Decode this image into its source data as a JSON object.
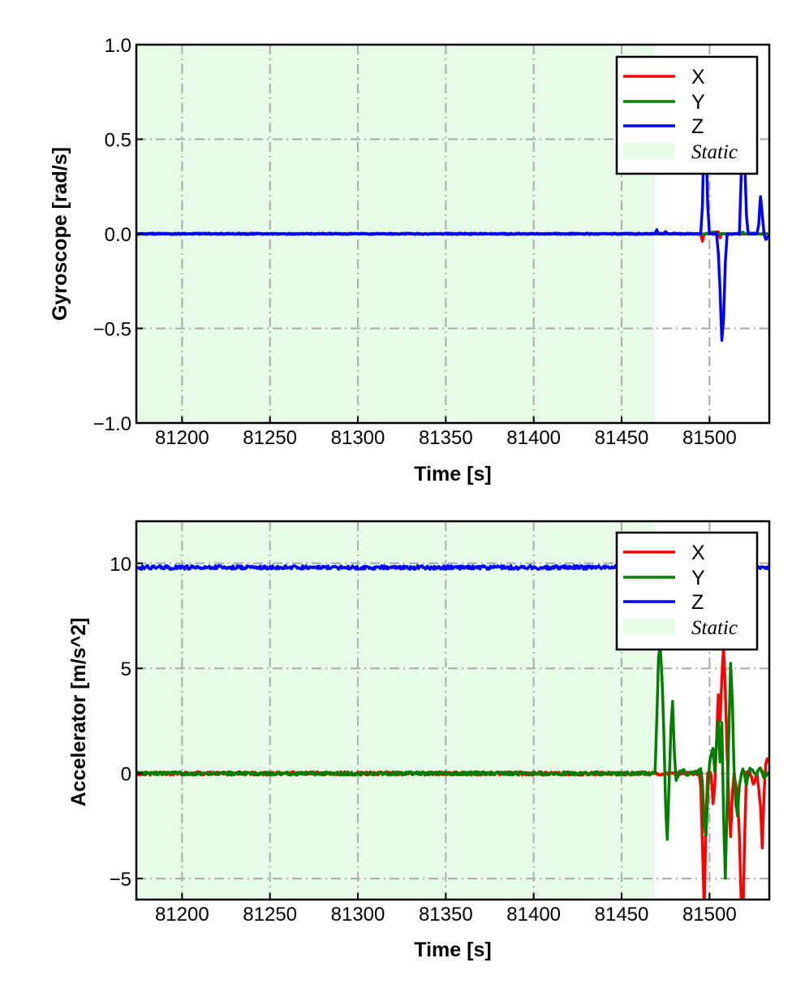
{
  "chart_data": [
    {
      "type": "line",
      "xlabel": "Time [s]",
      "ylabel": "Gyroscope [rad/s]",
      "xlim": [
        81174,
        81534
      ],
      "ylim": [
        -1.0,
        1.0
      ],
      "x_ticks": [
        81200,
        81250,
        81300,
        81350,
        81400,
        81450,
        81500
      ],
      "x_tick_labels": [
        "81200",
        "81250",
        "81300",
        "81350",
        "81400",
        "81450",
        "81500"
      ],
      "y_ticks": [
        -1.0,
        -0.5,
        0.0,
        0.5,
        1.0
      ],
      "y_tick_labels": [
        "−1.0",
        "−0.5",
        "0.0",
        "0.5",
        "1.0"
      ],
      "grid": true,
      "legend_position": "top-right",
      "static_region": {
        "label": "Static",
        "x_start": 81174,
        "x_end": 81469,
        "color": "#e8fbe8"
      },
      "series": [
        {
          "name": "X",
          "color": "#ff0000",
          "noise": 0.002,
          "points": [
            [
              81174,
              0
            ],
            [
              81495,
              0
            ],
            [
              81496,
              -0.04
            ],
            [
              81497,
              0
            ],
            [
              81505,
              0.01
            ],
            [
              81506,
              -0.02
            ],
            [
              81507,
              0
            ],
            [
              81534,
              0
            ]
          ]
        },
        {
          "name": "Y",
          "color": "#007f00",
          "noise": 0.002,
          "points": [
            [
              81174,
              0
            ],
            [
              81500,
              0
            ],
            [
              81502,
              0.01
            ],
            [
              81504,
              0
            ],
            [
              81518,
              0
            ],
            [
              81519,
              0.01
            ],
            [
              81520,
              0
            ],
            [
              81534,
              0
            ]
          ]
        },
        {
          "name": "Z",
          "color": "#0000ff",
          "noise": 0.004,
          "points": [
            [
              81174,
              0
            ],
            [
              81469,
              0
            ],
            [
              81470,
              0.02
            ],
            [
              81471,
              0
            ],
            [
              81474,
              0
            ],
            [
              81475,
              0.01
            ],
            [
              81476,
              0
            ],
            [
              81495,
              0
            ],
            [
              81496,
              0.15
            ],
            [
              81497,
              0.6
            ],
            [
              81498,
              0.5
            ],
            [
              81499,
              0.15
            ],
            [
              81500,
              0.0
            ],
            [
              81504,
              0.0
            ],
            [
              81505,
              -0.1
            ],
            [
              81506,
              -0.3
            ],
            [
              81507,
              -0.56
            ],
            [
              81508,
              -0.45
            ],
            [
              81509,
              -0.15
            ],
            [
              81510,
              0.0
            ],
            [
              81517,
              0.0
            ],
            [
              81518,
              0.3
            ],
            [
              81519,
              0.6
            ],
            [
              81520,
              0.4
            ],
            [
              81521,
              0.1
            ],
            [
              81522,
              0.0
            ],
            [
              81527,
              0.0
            ],
            [
              81528,
              0.05
            ],
            [
              81529,
              0.2
            ],
            [
              81530,
              0.1
            ],
            [
              81531,
              0.0
            ],
            [
              81532,
              -0.03
            ],
            [
              81534,
              -0.01
            ]
          ]
        }
      ]
    },
    {
      "type": "line",
      "xlabel": "Time [s]",
      "ylabel": "Accelerator [m/s^2]",
      "xlim": [
        81174,
        81534
      ],
      "ylim": [
        -6,
        12
      ],
      "x_ticks": [
        81200,
        81250,
        81300,
        81350,
        81400,
        81450,
        81500
      ],
      "x_tick_labels": [
        "81200",
        "81250",
        "81300",
        "81350",
        "81400",
        "81450",
        "81500"
      ],
      "y_ticks": [
        -5,
        0,
        5,
        10
      ],
      "y_tick_labels": [
        "−5",
        "0",
        "5",
        "10"
      ],
      "grid": true,
      "legend_position": "top-right",
      "static_region": {
        "label": "Static",
        "x_start": 81174,
        "x_end": 81469,
        "color": "#e8fbe8"
      },
      "series": [
        {
          "name": "X",
          "color": "#ff0000",
          "noise": 0.08,
          "points": [
            [
              81174,
              0
            ],
            [
              81494,
              0
            ],
            [
              81495,
              -0.5
            ],
            [
              81496,
              -3.5
            ],
            [
              81497,
              -6.5
            ],
            [
              81498,
              -2
            ],
            [
              81499,
              0
            ],
            [
              81501,
              0
            ],
            [
              81502,
              -1.5
            ],
            [
              81503,
              -0.5
            ],
            [
              81504,
              1.5
            ],
            [
              81505,
              3.8
            ],
            [
              81506,
              2.5
            ],
            [
              81507,
              4.5
            ],
            [
              81508,
              6
            ],
            [
              81509,
              4
            ],
            [
              81510,
              1
            ],
            [
              81511,
              -1.5
            ],
            [
              81512,
              -3
            ],
            [
              81513,
              -1
            ],
            [
              81514,
              0
            ],
            [
              81516,
              -1
            ],
            [
              81517,
              -3
            ],
            [
              81518,
              -6
            ],
            [
              81519,
              -7
            ],
            [
              81520,
              -3
            ],
            [
              81521,
              0
            ],
            [
              81523,
              0
            ],
            [
              81525,
              -0.5
            ],
            [
              81527,
              0
            ],
            [
              81529,
              -1.5
            ],
            [
              81530,
              -3.5
            ],
            [
              81531,
              -1
            ],
            [
              81532,
              0.5
            ],
            [
              81533,
              0.7
            ],
            [
              81534,
              0.5
            ]
          ]
        },
        {
          "name": "Y",
          "color": "#007f00",
          "noise": 0.08,
          "points": [
            [
              81174,
              0
            ],
            [
              81469,
              0
            ],
            [
              81470,
              2.5
            ],
            [
              81471,
              5.5
            ],
            [
              81472,
              6
            ],
            [
              81473,
              4.5
            ],
            [
              81474,
              2
            ],
            [
              81475,
              -1.5
            ],
            [
              81476,
              -3.2
            ],
            [
              81477,
              -0.5
            ],
            [
              81478,
              2
            ],
            [
              81479,
              3.4
            ],
            [
              81480,
              1
            ],
            [
              81481,
              -0.3
            ],
            [
              81483,
              0.1
            ],
            [
              81485,
              0.2
            ],
            [
              81487,
              -0.1
            ],
            [
              81489,
              0
            ],
            [
              81491,
              0.1
            ],
            [
              81493,
              0
            ],
            [
              81495,
              0.3
            ],
            [
              81496,
              -0.5
            ],
            [
              81497,
              -2.5
            ],
            [
              81498,
              -3
            ],
            [
              81499,
              -1
            ],
            [
              81500,
              0.5
            ],
            [
              81502,
              1.2
            ],
            [
              81503,
              0
            ],
            [
              81504,
              1.5
            ],
            [
              81505,
              2.5
            ],
            [
              81506,
              0.5
            ],
            [
              81507,
              2.5
            ],
            [
              81508,
              -2
            ],
            [
              81509,
              -5
            ],
            [
              81510,
              -1.5
            ],
            [
              81511,
              2
            ],
            [
              81512,
              5.2
            ],
            [
              81513,
              3.5
            ],
            [
              81514,
              0
            ],
            [
              81515,
              -1.5
            ],
            [
              81516,
              -2
            ],
            [
              81517,
              -0.5
            ],
            [
              81519,
              0.2
            ],
            [
              81521,
              -0.5
            ],
            [
              81523,
              0.2
            ],
            [
              81525,
              0.1
            ],
            [
              81527,
              0
            ],
            [
              81529,
              0.3
            ],
            [
              81531,
              -0.2
            ],
            [
              81533,
              0
            ],
            [
              81534,
              0
            ]
          ]
        },
        {
          "name": "Z",
          "color": "#0000ff",
          "noise": 0.09,
          "points": [
            [
              81174,
              9.8
            ],
            [
              81469,
              9.8
            ],
            [
              81534,
              9.8
            ]
          ]
        }
      ]
    }
  ]
}
